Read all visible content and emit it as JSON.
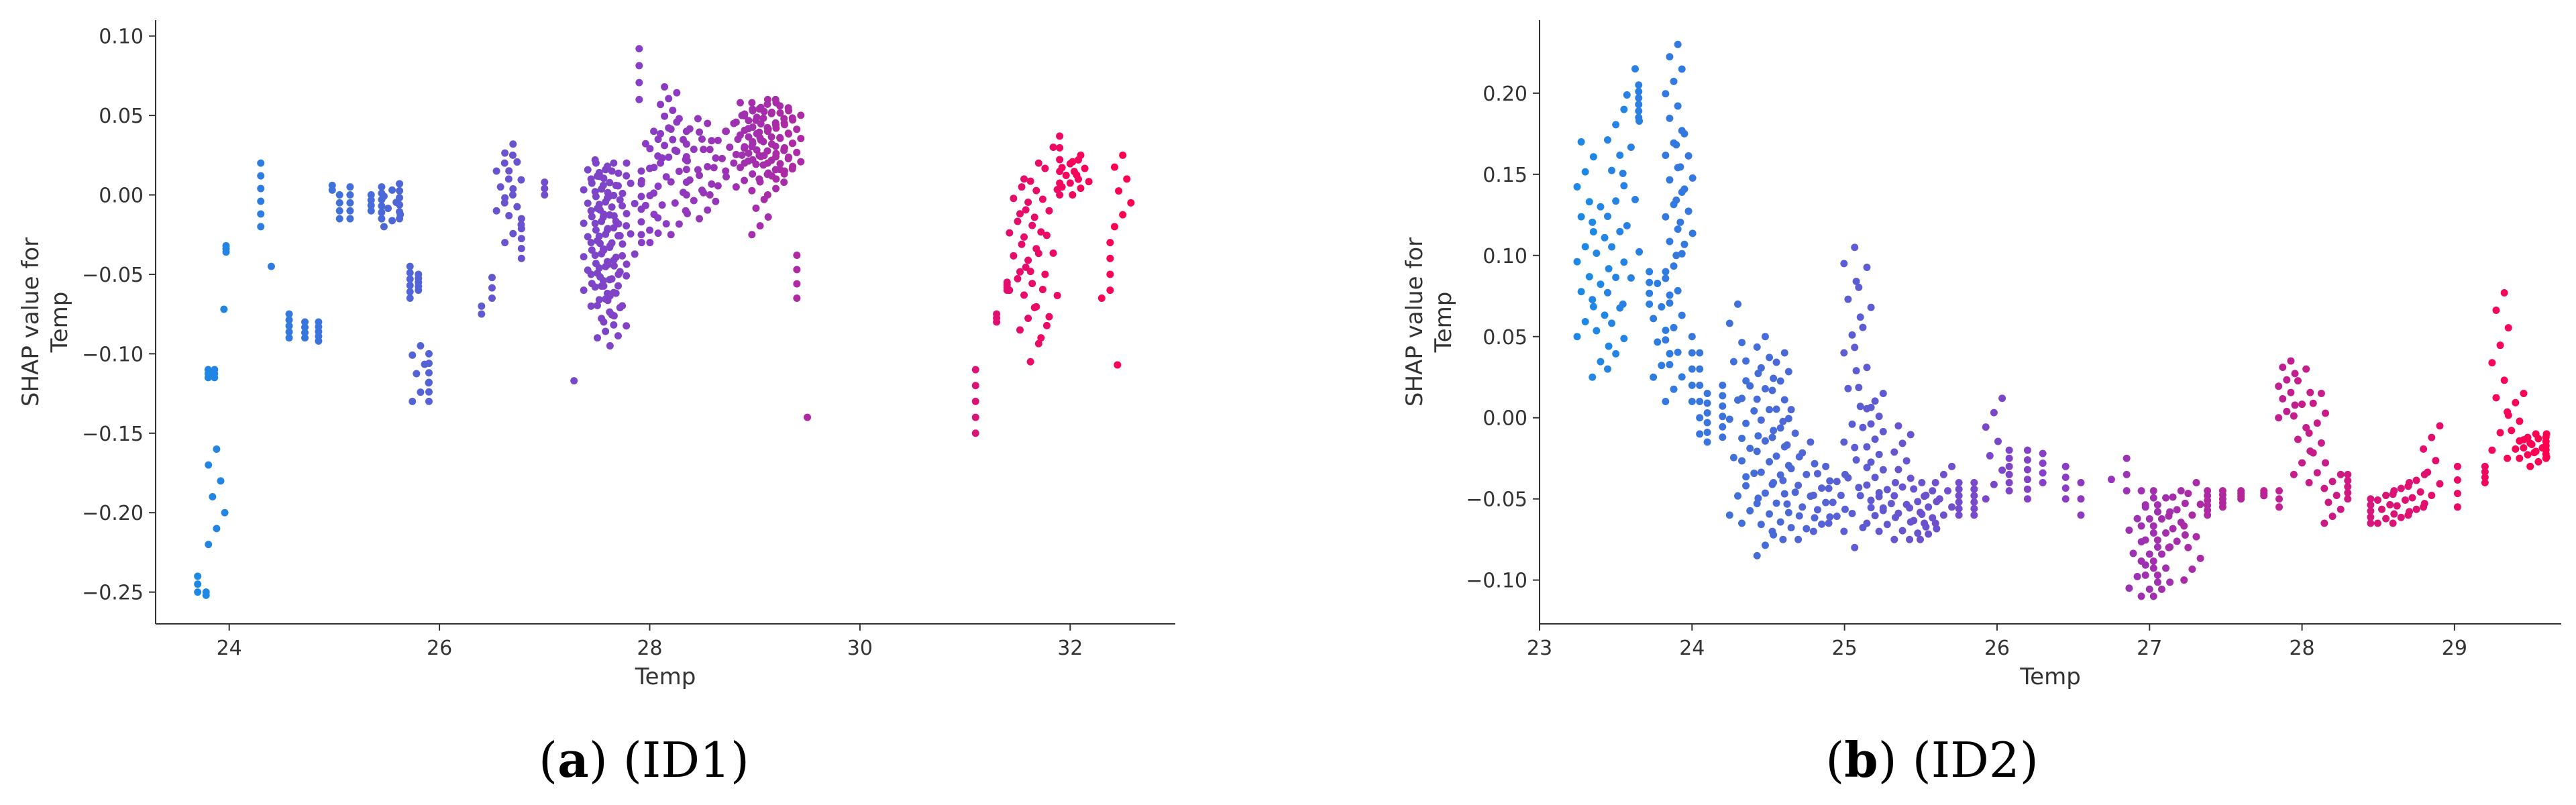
{
  "chart_data": [
    {
      "type": "scatter",
      "id": "ID1",
      "caption_letter": "a",
      "caption_text": "(ID1)",
      "xlabel": "Temp",
      "ylabel_line1": "SHAP value for",
      "ylabel_line2": "Temp",
      "xlim": [
        23.3,
        33.0
      ],
      "ylim": [
        -0.27,
        0.11
      ],
      "xticks": [
        24,
        26,
        28,
        30,
        32
      ],
      "yticks": [
        -0.25,
        -0.2,
        -0.15,
        -0.1,
        -0.05,
        0.0,
        0.05,
        0.1
      ],
      "color_scale": {
        "low": "#1E88E5",
        "mid": "#8B3BC4",
        "high": "#FF0051",
        "range": [
          23.7,
          32.5
        ]
      },
      "clusters": [
        [
          23.7,
          -0.25,
          -0.24,
          3
        ],
        [
          23.78,
          -0.252,
          -0.25,
          2
        ],
        [
          23.8,
          -0.115,
          -0.11,
          3
        ],
        [
          23.86,
          -0.115,
          -0.11,
          3
        ],
        [
          23.88,
          -0.22,
          -0.16,
          7
        ],
        [
          23.95,
          -0.072,
          -0.07,
          1
        ],
        [
          23.97,
          -0.036,
          -0.032,
          3
        ],
        [
          24.3,
          -0.02,
          0.02,
          6
        ],
        [
          24.4,
          -0.045,
          -0.043,
          1
        ],
        [
          24.57,
          -0.09,
          -0.075,
          5
        ],
        [
          24.72,
          -0.09,
          -0.08,
          4
        ],
        [
          24.85,
          -0.092,
          -0.08,
          5
        ],
        [
          24.98,
          0.003,
          0.006,
          2
        ],
        [
          25.05,
          -0.015,
          0.0,
          4
        ],
        [
          25.15,
          -0.015,
          0.005,
          5
        ],
        [
          25.35,
          -0.01,
          0.0,
          4
        ],
        [
          25.45,
          -0.015,
          0.005,
          6
        ],
        [
          25.55,
          -0.02,
          0.003,
          7
        ],
        [
          25.62,
          -0.015,
          0.007,
          6
        ],
        [
          25.72,
          -0.065,
          -0.045,
          6
        ],
        [
          25.8,
          -0.06,
          -0.05,
          5
        ],
        [
          25.82,
          -0.13,
          -0.095,
          7
        ],
        [
          25.9,
          -0.13,
          -0.1,
          6
        ],
        [
          26.4,
          -0.075,
          -0.07,
          2
        ],
        [
          26.5,
          -0.065,
          -0.052,
          3
        ],
        [
          26.62,
          -0.01,
          0.025,
          8
        ],
        [
          26.7,
          -0.03,
          0.032,
          12
        ],
        [
          26.78,
          -0.04,
          -0.015,
          5
        ],
        [
          27.0,
          0.0,
          0.008,
          3
        ],
        [
          27.28,
          -0.117,
          -0.115,
          1
        ],
        [
          27.45,
          -0.06,
          0.02,
          20
        ],
        [
          27.52,
          -0.07,
          0.022,
          24
        ],
        [
          27.58,
          -0.09,
          0.02,
          28
        ],
        [
          27.64,
          -0.08,
          0.015,
          22
        ],
        [
          27.7,
          -0.095,
          0.012,
          18
        ],
        [
          27.78,
          -0.05,
          0.02,
          12
        ],
        [
          27.92,
          -0.025,
          0.015,
          6
        ],
        [
          27.9,
          0.06,
          0.092,
          4
        ],
        [
          28.0,
          -0.03,
          0.04,
          10
        ],
        [
          28.08,
          -0.03,
          0.035,
          12
        ],
        [
          28.18,
          0.02,
          0.068,
          14
        ],
        [
          28.28,
          -0.025,
          0.048,
          12
        ],
        [
          28.35,
          0.0,
          0.04,
          6
        ],
        [
          28.42,
          -0.01,
          0.048,
          10
        ],
        [
          28.55,
          -0.015,
          0.045,
          12
        ],
        [
          28.65,
          0.0,
          0.04,
          8
        ],
        [
          28.8,
          0.015,
          0.05,
          8
        ],
        [
          28.9,
          0.005,
          0.058,
          14
        ],
        [
          28.98,
          0.02,
          0.055,
          18
        ],
        [
          29.05,
          -0.025,
          0.058,
          16
        ],
        [
          29.12,
          0.01,
          0.06,
          18
        ],
        [
          29.2,
          0.0,
          0.06,
          16
        ],
        [
          29.28,
          0.01,
          0.058,
          16
        ],
        [
          29.36,
          0.015,
          0.053,
          14
        ],
        [
          29.4,
          -0.065,
          -0.038,
          4
        ],
        [
          29.5,
          -0.14,
          -0.138,
          1
        ],
        [
          31.1,
          -0.15,
          -0.11,
          5
        ],
        [
          31.3,
          -0.08,
          -0.075,
          3
        ],
        [
          31.4,
          -0.06,
          -0.055,
          4
        ],
        [
          31.5,
          -0.06,
          0.005,
          10
        ],
        [
          31.6,
          -0.085,
          0.01,
          14
        ],
        [
          31.7,
          -0.105,
          0.02,
          12
        ],
        [
          31.8,
          -0.09,
          0.03,
          10
        ],
        [
          31.9,
          0.0,
          0.037,
          6
        ],
        [
          32.0,
          0.005,
          0.022,
          8
        ],
        [
          32.1,
          0.0,
          0.025,
          7
        ],
        [
          32.3,
          -0.065,
          -0.06,
          1
        ],
        [
          32.38,
          -0.06,
          -0.03,
          4
        ],
        [
          32.45,
          -0.107,
          -0.105,
          1
        ],
        [
          32.5,
          -0.02,
          0.025,
          7
        ]
      ]
    },
    {
      "type": "scatter",
      "id": "ID2",
      "caption_letter": "b",
      "caption_text": "(ID2)",
      "xlabel": "Temp",
      "ylabel_line1": "SHAP value for",
      "ylabel_line2": "Temp",
      "xlim": [
        23.0,
        29.7
      ],
      "ylim": [
        -0.127,
        0.245
      ],
      "xticks": [
        23,
        24,
        25,
        26,
        27,
        28,
        29
      ],
      "yticks": [
        -0.1,
        -0.05,
        0.0,
        0.05,
        0.1,
        0.15,
        0.2
      ],
      "color_scale": {
        "low": "#1E88E5",
        "mid": "#8B3BC4",
        "high": "#FF0051",
        "range": [
          23.3,
          29.6
        ]
      },
      "clusters": [
        [
          23.3,
          0.05,
          0.17,
          14
        ],
        [
          23.4,
          0.025,
          0.13,
          12
        ],
        [
          23.5,
          0.03,
          0.19,
          18
        ],
        [
          23.6,
          0.07,
          0.215,
          10
        ],
        [
          23.65,
          0.185,
          0.205,
          6
        ],
        [
          23.72,
          0.07,
          0.09,
          4
        ],
        [
          23.8,
          0.025,
          0.09,
          10
        ],
        [
          23.88,
          0.01,
          0.23,
          30
        ],
        [
          23.95,
          0.1,
          0.175,
          12
        ],
        [
          24.0,
          0.01,
          0.05,
          5
        ],
        [
          24.05,
          -0.01,
          0.04,
          6
        ],
        [
          24.1,
          -0.015,
          0.015,
          6
        ],
        [
          24.2,
          -0.012,
          0.02,
          6
        ],
        [
          24.3,
          -0.06,
          0.07,
          12
        ],
        [
          24.38,
          -0.065,
          0.035,
          14
        ],
        [
          24.48,
          -0.085,
          0.05,
          22
        ],
        [
          24.58,
          -0.07,
          0.04,
          20
        ],
        [
          24.65,
          -0.075,
          0.005,
          12
        ],
        [
          24.75,
          -0.075,
          -0.015,
          10
        ],
        [
          24.85,
          -0.07,
          -0.03,
          10
        ],
        [
          24.95,
          -0.065,
          -0.035,
          8
        ],
        [
          25.05,
          -0.07,
          0.095,
          16
        ],
        [
          25.12,
          -0.08,
          0.105,
          16
        ],
        [
          25.2,
          -0.065,
          0.015,
          18
        ],
        [
          25.28,
          -0.07,
          -0.04,
          8
        ],
        [
          25.38,
          -0.075,
          -0.005,
          14
        ],
        [
          25.48,
          -0.075,
          -0.04,
          10
        ],
        [
          25.55,
          -0.075,
          -0.045,
          10
        ],
        [
          25.65,
          -0.065,
          -0.03,
          8
        ],
        [
          25.75,
          -0.06,
          -0.04,
          6
        ],
        [
          25.85,
          -0.06,
          -0.04,
          6
        ],
        [
          25.98,
          -0.05,
          0.012,
          8
        ],
        [
          26.08,
          -0.045,
          -0.02,
          6
        ],
        [
          26.2,
          -0.05,
          -0.02,
          6
        ],
        [
          26.3,
          -0.04,
          -0.022,
          4
        ],
        [
          26.45,
          -0.05,
          -0.03,
          4
        ],
        [
          26.55,
          -0.06,
          -0.04,
          3
        ],
        [
          26.75,
          -0.038,
          -0.036,
          1
        ],
        [
          26.85,
          -0.045,
          -0.025,
          3
        ],
        [
          26.92,
          -0.105,
          -0.055,
          8
        ],
        [
          27.0,
          -0.11,
          -0.045,
          16
        ],
        [
          27.08,
          -0.11,
          -0.045,
          16
        ],
        [
          27.18,
          -0.08,
          -0.045,
          10
        ],
        [
          27.28,
          -0.1,
          -0.04,
          10
        ],
        [
          27.38,
          -0.06,
          -0.045,
          6
        ],
        [
          27.48,
          -0.055,
          -0.045,
          5
        ],
        [
          27.6,
          -0.05,
          -0.045,
          4
        ],
        [
          27.75,
          -0.048,
          -0.045,
          3
        ],
        [
          27.85,
          -0.055,
          -0.045,
          3
        ],
        [
          27.9,
          0.0,
          0.035,
          10
        ],
        [
          28.0,
          -0.035,
          0.03,
          10
        ],
        [
          28.1,
          -0.04,
          0.015,
          10
        ],
        [
          28.2,
          -0.065,
          -0.035,
          8
        ],
        [
          28.3,
          -0.05,
          -0.035,
          5
        ],
        [
          28.45,
          -0.065,
          -0.05,
          5
        ],
        [
          28.55,
          -0.065,
          -0.045,
          8
        ],
        [
          28.65,
          -0.065,
          -0.04,
          8
        ],
        [
          28.75,
          -0.06,
          -0.035,
          8
        ],
        [
          28.85,
          -0.055,
          -0.005,
          8
        ],
        [
          29.02,
          -0.055,
          -0.03,
          4
        ],
        [
          29.2,
          -0.04,
          -0.03,
          4
        ],
        [
          29.3,
          -0.02,
          0.077,
          10
        ],
        [
          29.4,
          -0.025,
          0.015,
          8
        ],
        [
          29.48,
          -0.025,
          -0.01,
          8
        ],
        [
          29.55,
          -0.03,
          -0.01,
          8
        ],
        [
          29.6,
          -0.025,
          -0.012,
          6
        ]
      ]
    }
  ]
}
